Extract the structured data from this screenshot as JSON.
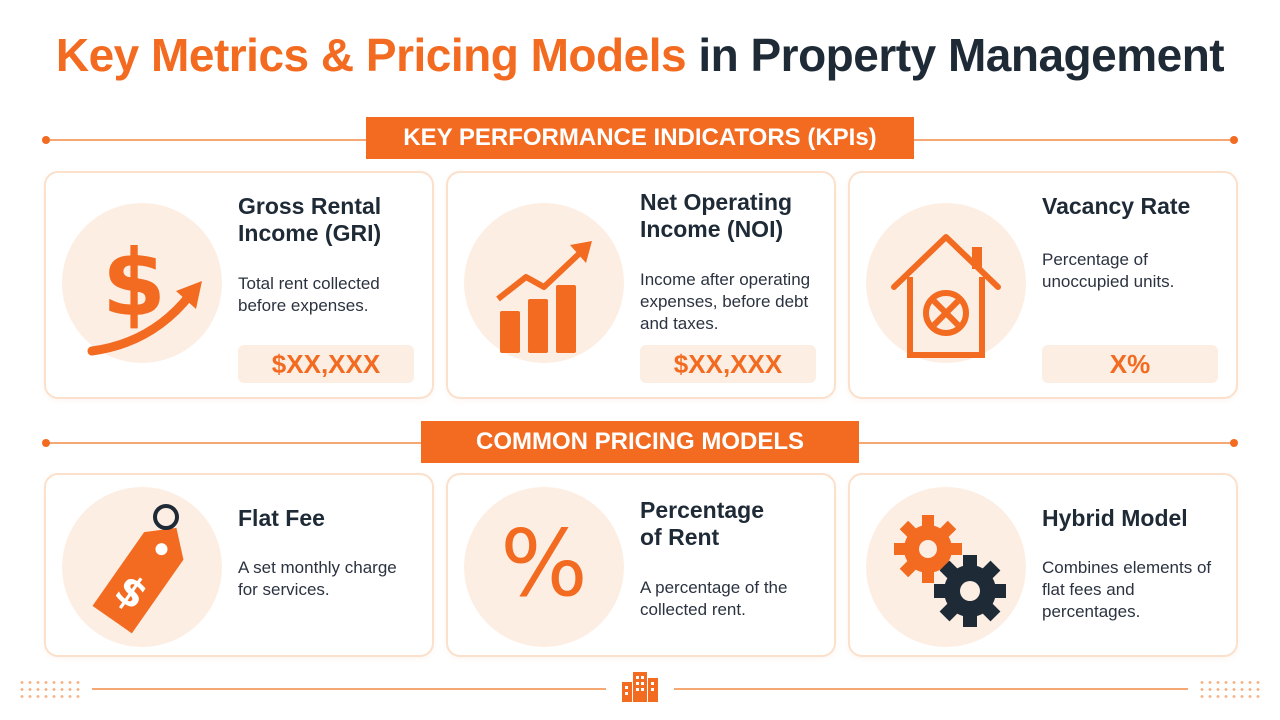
{
  "title": {
    "part1": "Key Metrics & Pricing Models",
    "part2": "in Property Management"
  },
  "kpi_section": {
    "label": "KEY PERFORMANCE INDICATORS (KPIs)"
  },
  "kpis": [
    {
      "title_line1": "Gross Rental",
      "title_line2": "Income (GRI)",
      "desc": "Total rent collected before expenses.",
      "value": "$XX,XXX",
      "icon": "dollar-growth-icon"
    },
    {
      "title_line1": "Net Operating",
      "title_line2": "Income (NOI)",
      "desc": "Income after operating expenses, before debt and taxes.",
      "value": "$XX,XXX",
      "icon": "bar-chart-growth-icon"
    },
    {
      "title_line1": "Vacancy Rate",
      "title_line2": "",
      "desc": "Percentage of unoccupied units.",
      "value": "X%",
      "icon": "house-vacancy-icon"
    }
  ],
  "pricing_section": {
    "label": "COMMON PRICING MODELS"
  },
  "pricing": [
    {
      "title_line1": "Flat Fee",
      "title_line2": "",
      "desc": "A set monthly charge for services.",
      "icon": "price-tag-icon"
    },
    {
      "title_line1": "Percentage",
      "title_line2": "of Rent",
      "desc": "A percentage of the collected rent.",
      "icon": "percent-icon"
    },
    {
      "title_line1": "Hybrid Model",
      "title_line2": "",
      "desc": "Combines elements of flat fees and percentages.",
      "icon": "gears-icon"
    }
  ],
  "footer": {
    "icon": "building-icon"
  },
  "colors": {
    "accent": "#f26b21",
    "dark": "#1f2a37",
    "tint": "#fdeee4"
  }
}
